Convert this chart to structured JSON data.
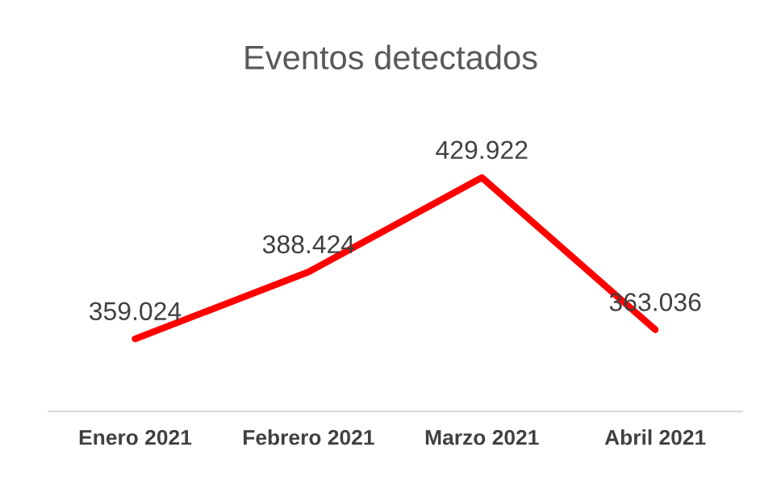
{
  "chart_data": {
    "type": "line",
    "title": "Eventos detectados",
    "categories": [
      "Enero 2021",
      "Febrero 2021",
      "Marzo 2021",
      "Abril 2021"
    ],
    "series": [
      {
        "color": "#ff0000",
        "values": [
          359.024,
          388.424,
          429.922,
          363.036
        ]
      }
    ],
    "data_labels": true,
    "line_style": "solid"
  }
}
